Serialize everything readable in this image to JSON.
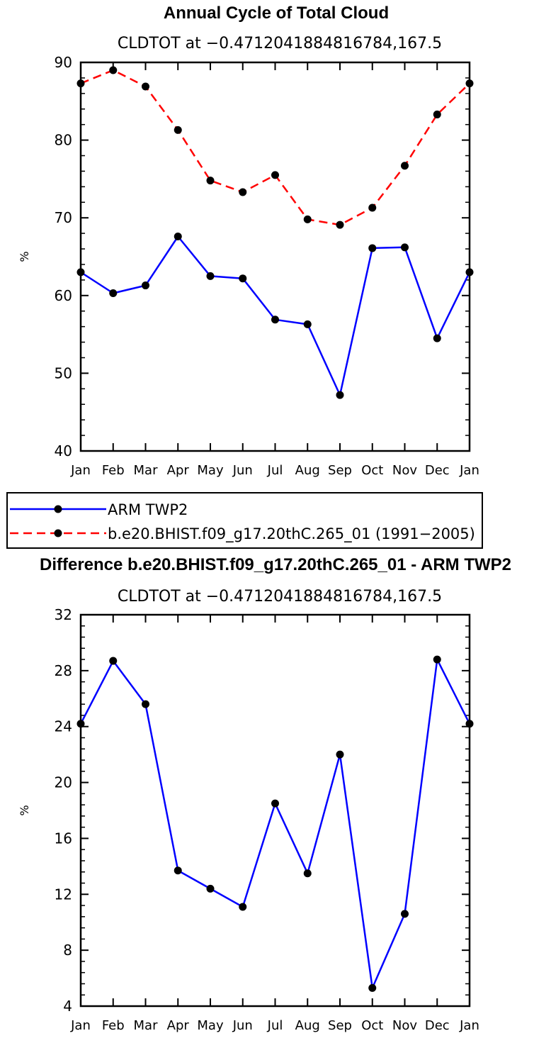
{
  "chart_data": [
    {
      "type": "line",
      "title": "Annual Cycle of Total Cloud",
      "subtitle": "CLDTOT at −0.4712041884816784,167.5",
      "ylabel": "%",
      "ylim": [
        40,
        90
      ],
      "yticks": [
        40,
        50,
        60,
        70,
        80,
        90
      ],
      "categories": [
        "Jan",
        "Feb",
        "Mar",
        "Apr",
        "May",
        "Jun",
        "Jul",
        "Aug",
        "Sep",
        "Oct",
        "Nov",
        "Dec",
        "Jan"
      ],
      "series": [
        {
          "name": "ARM TWP2",
          "color": "#0000ff",
          "style": "solid",
          "values": [
            63.0,
            60.3,
            61.3,
            67.6,
            62.5,
            62.2,
            56.9,
            56.3,
            47.2,
            66.1,
            66.2,
            54.5,
            63.0
          ]
        },
        {
          "name": "b.e20.BHIST.f09_g17.20thC.265_01 (1991−2005)",
          "color": "#ff0000",
          "style": "dashed",
          "values": [
            87.3,
            89.0,
            86.9,
            81.3,
            74.8,
            73.3,
            75.5,
            69.8,
            69.1,
            71.3,
            76.7,
            83.3,
            87.3
          ]
        }
      ],
      "legend_position": "bottom"
    },
    {
      "type": "line",
      "title": "Difference b.e20.BHIST.f09_g17.20thC.265_01 - ARM TWP2",
      "subtitle": "CLDTOT at −0.4712041884816784,167.5",
      "ylabel": "%",
      "ylim": [
        4,
        32
      ],
      "yticks": [
        4,
        8,
        12,
        16,
        20,
        24,
        28,
        32
      ],
      "categories": [
        "Jan",
        "Feb",
        "Mar",
        "Apr",
        "May",
        "Jun",
        "Jul",
        "Aug",
        "Sep",
        "Oct",
        "Nov",
        "Dec",
        "Jan"
      ],
      "series": [
        {
          "color": "#0000ff",
          "style": "solid",
          "values": [
            24.2,
            28.7,
            25.6,
            13.7,
            12.4,
            11.1,
            18.5,
            13.5,
            22.0,
            5.3,
            10.6,
            28.8,
            24.2
          ]
        }
      ]
    }
  ]
}
